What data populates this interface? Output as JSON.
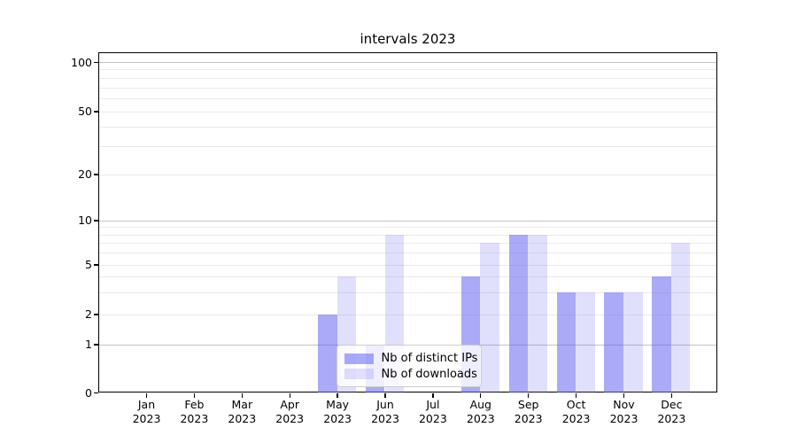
{
  "chart_data": {
    "type": "bar",
    "title": "intervals 2023",
    "categories": [
      "Jan",
      "Feb",
      "Mar",
      "Apr",
      "May",
      "Jun",
      "Jul",
      "Aug",
      "Sep",
      "Oct",
      "Nov",
      "Dec"
    ],
    "x_year_line": "2023",
    "series": [
      {
        "name": "Nb of distinct IPs",
        "color": "rgba(100,100,240,0.55)",
        "values": [
          0,
          0,
          0,
          0,
          2,
          1,
          0,
          4,
          8,
          3,
          3,
          4
        ]
      },
      {
        "name": "Nb of downloads",
        "color": "rgba(100,100,240,0.2)",
        "values": [
          0,
          0,
          0,
          0,
          4,
          8,
          0,
          7,
          8,
          3,
          3,
          7
        ]
      }
    ],
    "yscale": "symlog",
    "ylim": [
      0,
      110
    ],
    "y_ticks": [
      0,
      1,
      2,
      5,
      10,
      20,
      50,
      100
    ],
    "y_major_grid": [
      1,
      10,
      100
    ],
    "y_minor_grid": [
      2,
      3,
      4,
      5,
      6,
      7,
      8,
      9,
      20,
      30,
      40,
      50,
      60,
      70,
      80,
      90
    ],
    "grid": true,
    "legend_position": "lower left of center, inside plot",
    "colors": {
      "major_grid": "#c2c2c2",
      "minor_grid": "#eaeaea",
      "spine": "#000000",
      "text": "#000000",
      "background": "#ffffff"
    }
  }
}
